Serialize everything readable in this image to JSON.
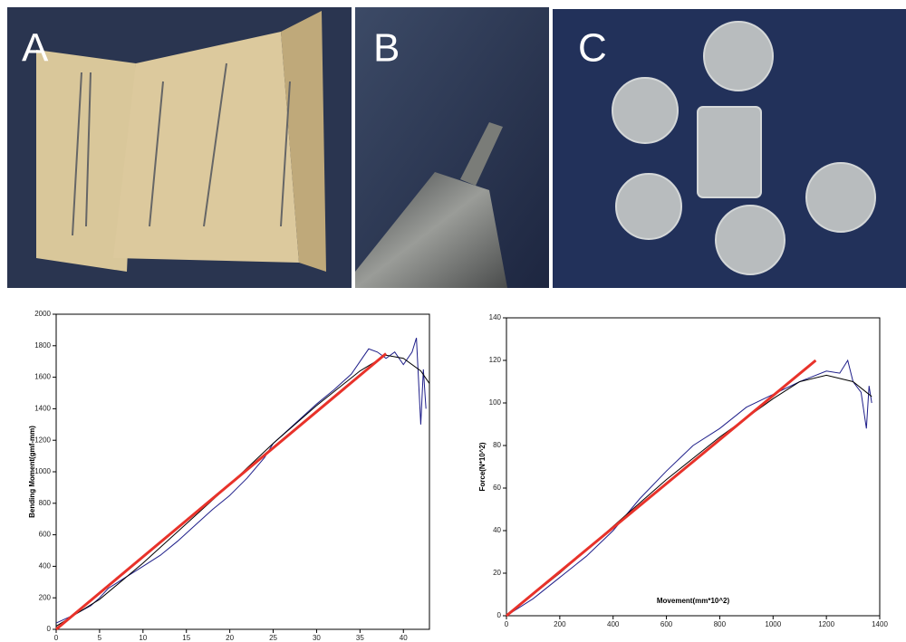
{
  "photos": [
    {
      "label": "A"
    },
    {
      "label": "B"
    },
    {
      "label": "C"
    }
  ],
  "chart_data": [
    {
      "type": "line",
      "ylabel": "Bending Moment(gmf-mm)",
      "xlim": [
        0,
        43
      ],
      "ylim": [
        0,
        2000
      ],
      "xticks": [
        0,
        5,
        10,
        15,
        20,
        25,
        30,
        35,
        40
      ],
      "yticks": [
        0,
        200,
        400,
        600,
        800,
        1000,
        1200,
        1400,
        1600,
        1800,
        2000
      ],
      "series": [
        {
          "color": "#1f1f8a",
          "width": 1,
          "x": [
            0,
            2,
            4,
            5,
            6,
            8,
            10,
            12,
            14,
            16,
            18,
            20,
            22,
            24,
            25,
            26,
            28,
            30,
            32,
            34,
            35,
            36,
            37,
            38,
            39,
            40,
            41,
            41.5,
            42,
            42.3,
            42.6
          ],
          "values": [
            40,
            90,
            150,
            200,
            260,
            330,
            400,
            470,
            560,
            660,
            760,
            850,
            960,
            1090,
            1180,
            1230,
            1330,
            1430,
            1520,
            1620,
            1700,
            1780,
            1760,
            1720,
            1760,
            1680,
            1760,
            1850,
            1300,
            1650,
            1400
          ]
        },
        {
          "color": "#000000",
          "width": 1,
          "x": [
            0,
            5,
            10,
            15,
            20,
            25,
            30,
            35,
            38,
            40,
            42,
            43
          ],
          "values": [
            20,
            190,
            420,
            670,
            920,
            1180,
            1420,
            1640,
            1740,
            1720,
            1640,
            1560
          ]
        },
        {
          "color": "#e8322a",
          "width": 3,
          "x": [
            0,
            38
          ],
          "values": [
            0,
            1750
          ]
        }
      ]
    },
    {
      "type": "line",
      "ylabel": "Force(N*10^2)",
      "xlabel": "Movement(mm*10^2)",
      "xlim": [
        0,
        1400
      ],
      "ylim": [
        0,
        140
      ],
      "xticks": [
        0,
        200,
        400,
        600,
        800,
        1000,
        1200,
        1400
      ],
      "yticks": [
        0,
        20,
        40,
        60,
        80,
        100,
        120,
        140
      ],
      "series": [
        {
          "color": "#1f1f8a",
          "width": 1,
          "x": [
            0,
            100,
            200,
            300,
            400,
            500,
            600,
            700,
            800,
            900,
            1000,
            1100,
            1200,
            1250,
            1280,
            1300,
            1330,
            1350,
            1360,
            1370
          ],
          "values": [
            0,
            8,
            18,
            28,
            40,
            55,
            68,
            80,
            88,
            98,
            104,
            110,
            115,
            114,
            120,
            110,
            105,
            88,
            108,
            100
          ]
        },
        {
          "color": "#000000",
          "width": 1,
          "x": [
            0,
            200,
            400,
            600,
            800,
            1000,
            1100,
            1200,
            1300,
            1370
          ],
          "values": [
            0,
            20,
            42,
            64,
            84,
            102,
            110,
            113,
            110,
            103
          ]
        },
        {
          "color": "#e8322a",
          "width": 3,
          "x": [
            0,
            1160
          ],
          "values": [
            0,
            120
          ]
        }
      ]
    }
  ]
}
